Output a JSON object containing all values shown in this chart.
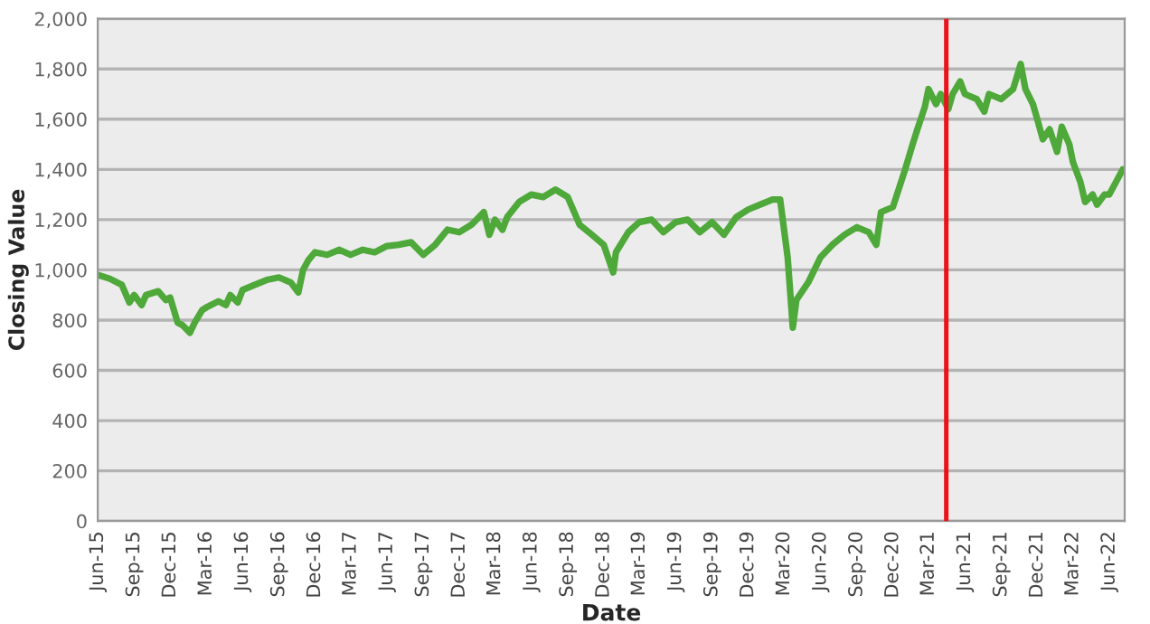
{
  "chart_data": {
    "type": "line",
    "xlabel": "Date",
    "ylabel": "Closing Value",
    "x": [
      "2015-06-01",
      "2015-07-01",
      "2015-08-01",
      "2015-08-20",
      "2015-09-01",
      "2015-09-20",
      "2015-10-01",
      "2015-11-01",
      "2015-11-20",
      "2015-12-01",
      "2015-12-20",
      "2016-01-01",
      "2016-01-20",
      "2016-02-01",
      "2016-02-20",
      "2016-03-01",
      "2016-04-01",
      "2016-04-20",
      "2016-05-01",
      "2016-05-20",
      "2016-06-01",
      "2016-07-01",
      "2016-08-01",
      "2016-09-01",
      "2016-10-01",
      "2016-10-20",
      "2016-11-01",
      "2016-11-15",
      "2016-12-01",
      "2017-01-01",
      "2017-02-01",
      "2017-03-01",
      "2017-04-01",
      "2017-05-01",
      "2017-06-01",
      "2017-07-01",
      "2017-08-01",
      "2017-09-01",
      "2017-10-01",
      "2017-11-01",
      "2017-12-01",
      "2018-01-01",
      "2018-02-01",
      "2018-02-15",
      "2018-03-01",
      "2018-03-20",
      "2018-04-01",
      "2018-05-01",
      "2018-06-01",
      "2018-07-01",
      "2018-08-01",
      "2018-09-01",
      "2018-10-01",
      "2018-11-01",
      "2018-12-01",
      "2018-12-25",
      "2019-01-01",
      "2019-02-01",
      "2019-03-01",
      "2019-04-01",
      "2019-05-01",
      "2019-06-01",
      "2019-07-01",
      "2019-08-01",
      "2019-09-01",
      "2019-10-01",
      "2019-11-01",
      "2019-12-01",
      "2020-01-01",
      "2020-02-01",
      "2020-02-20",
      "2020-03-10",
      "2020-03-23",
      "2020-04-01",
      "2020-05-01",
      "2020-06-01",
      "2020-07-01",
      "2020-08-01",
      "2020-09-01",
      "2020-10-01",
      "2020-10-20",
      "2020-11-01",
      "2020-12-01",
      "2021-01-01",
      "2021-01-20",
      "2021-02-01",
      "2021-02-20",
      "2021-03-01",
      "2021-03-20",
      "2021-04-01",
      "2021-04-20",
      "2021-05-01",
      "2021-05-20",
      "2021-06-01",
      "2021-07-01",
      "2021-07-20",
      "2021-08-01",
      "2021-09-01",
      "2021-10-01",
      "2021-10-20",
      "2021-11-01",
      "2021-11-20",
      "2021-12-01",
      "2021-12-15",
      "2022-01-01",
      "2022-01-20",
      "2022-02-01",
      "2022-02-20",
      "2022-03-01",
      "2022-03-20",
      "2022-04-01",
      "2022-04-20",
      "2022-05-01",
      "2022-05-20",
      "2022-06-01",
      "2022-07-05"
    ],
    "series": [
      {
        "color": "#4fa83a",
        "values": [
          980,
          965,
          940,
          870,
          900,
          860,
          900,
          915,
          880,
          890,
          790,
          780,
          750,
          790,
          840,
          850,
          875,
          860,
          900,
          870,
          920,
          940,
          960,
          970,
          950,
          910,
          1000,
          1040,
          1070,
          1060,
          1080,
          1060,
          1080,
          1070,
          1095,
          1100,
          1110,
          1060,
          1100,
          1160,
          1150,
          1180,
          1230,
          1140,
          1200,
          1160,
          1210,
          1270,
          1300,
          1290,
          1320,
          1290,
          1180,
          1140,
          1100,
          990,
          1070,
          1150,
          1190,
          1200,
          1150,
          1190,
          1200,
          1150,
          1190,
          1140,
          1210,
          1240,
          1260,
          1280,
          1280,
          1050,
          770,
          880,
          950,
          1050,
          1100,
          1140,
          1170,
          1150,
          1100,
          1230,
          1250,
          1400,
          1500,
          1560,
          1650,
          1720,
          1660,
          1700,
          1640,
          1700,
          1750,
          1700,
          1680,
          1630,
          1700,
          1680,
          1720,
          1820,
          1720,
          1660,
          1600,
          1520,
          1560,
          1470,
          1570,
          1500,
          1430,
          1350,
          1270,
          1300,
          1260,
          1300,
          1300,
          1400
        ]
      }
    ],
    "xlim": [
      "2015-06-01",
      "2022-07-10"
    ],
    "xticks": [
      {
        "value": "2015-06-01",
        "label": "Jun-15"
      },
      {
        "value": "2015-09-01",
        "label": "Sep-15"
      },
      {
        "value": "2015-12-01",
        "label": "Dec-15"
      },
      {
        "value": "2016-03-01",
        "label": "Mar-16"
      },
      {
        "value": "2016-06-01",
        "label": "Jun-16"
      },
      {
        "value": "2016-09-01",
        "label": "Sep-16"
      },
      {
        "value": "2016-12-01",
        "label": "Dec-16"
      },
      {
        "value": "2017-03-01",
        "label": "Mar-17"
      },
      {
        "value": "2017-06-01",
        "label": "Jun-17"
      },
      {
        "value": "2017-09-01",
        "label": "Sep-17"
      },
      {
        "value": "2017-12-01",
        "label": "Dec-17"
      },
      {
        "value": "2018-03-01",
        "label": "Mar-18"
      },
      {
        "value": "2018-06-01",
        "label": "Jun-18"
      },
      {
        "value": "2018-09-01",
        "label": "Sep-18"
      },
      {
        "value": "2018-12-01",
        "label": "Dec-18"
      },
      {
        "value": "2019-03-01",
        "label": "Mar-19"
      },
      {
        "value": "2019-06-01",
        "label": "Jun-19"
      },
      {
        "value": "2019-09-01",
        "label": "Sep-19"
      },
      {
        "value": "2019-12-01",
        "label": "Dec-19"
      },
      {
        "value": "2020-03-01",
        "label": "Mar-20"
      },
      {
        "value": "2020-06-01",
        "label": "Jun-20"
      },
      {
        "value": "2020-09-01",
        "label": "Sep-20"
      },
      {
        "value": "2020-12-01",
        "label": "Dec-20"
      },
      {
        "value": "2021-03-01",
        "label": "Mar-21"
      },
      {
        "value": "2021-06-01",
        "label": "Jun-21"
      },
      {
        "value": "2021-09-01",
        "label": "Sep-21"
      },
      {
        "value": "2021-12-01",
        "label": "Dec-21"
      },
      {
        "value": "2022-03-01",
        "label": "Mar-22"
      },
      {
        "value": "2022-06-01",
        "label": "Jun-22"
      }
    ],
    "ylim": [
      0,
      2000
    ],
    "yticks": [
      {
        "value": 0,
        "label": "0"
      },
      {
        "value": 200,
        "label": "200"
      },
      {
        "value": 400,
        "label": "400"
      },
      {
        "value": 600,
        "label": "600"
      },
      {
        "value": 800,
        "label": "800"
      },
      {
        "value": 1000,
        "label": "1,000"
      },
      {
        "value": 1200,
        "label": "1,200"
      },
      {
        "value": 1400,
        "label": "1,400"
      },
      {
        "value": 1600,
        "label": "1,600"
      },
      {
        "value": 1800,
        "label": "1,800"
      },
      {
        "value": 2000,
        "label": "2,000"
      }
    ],
    "grid": "y",
    "legend": false,
    "ref_lines": [
      {
        "axis": "x",
        "value": "2021-04-15",
        "color": "#e8131b"
      }
    ]
  }
}
